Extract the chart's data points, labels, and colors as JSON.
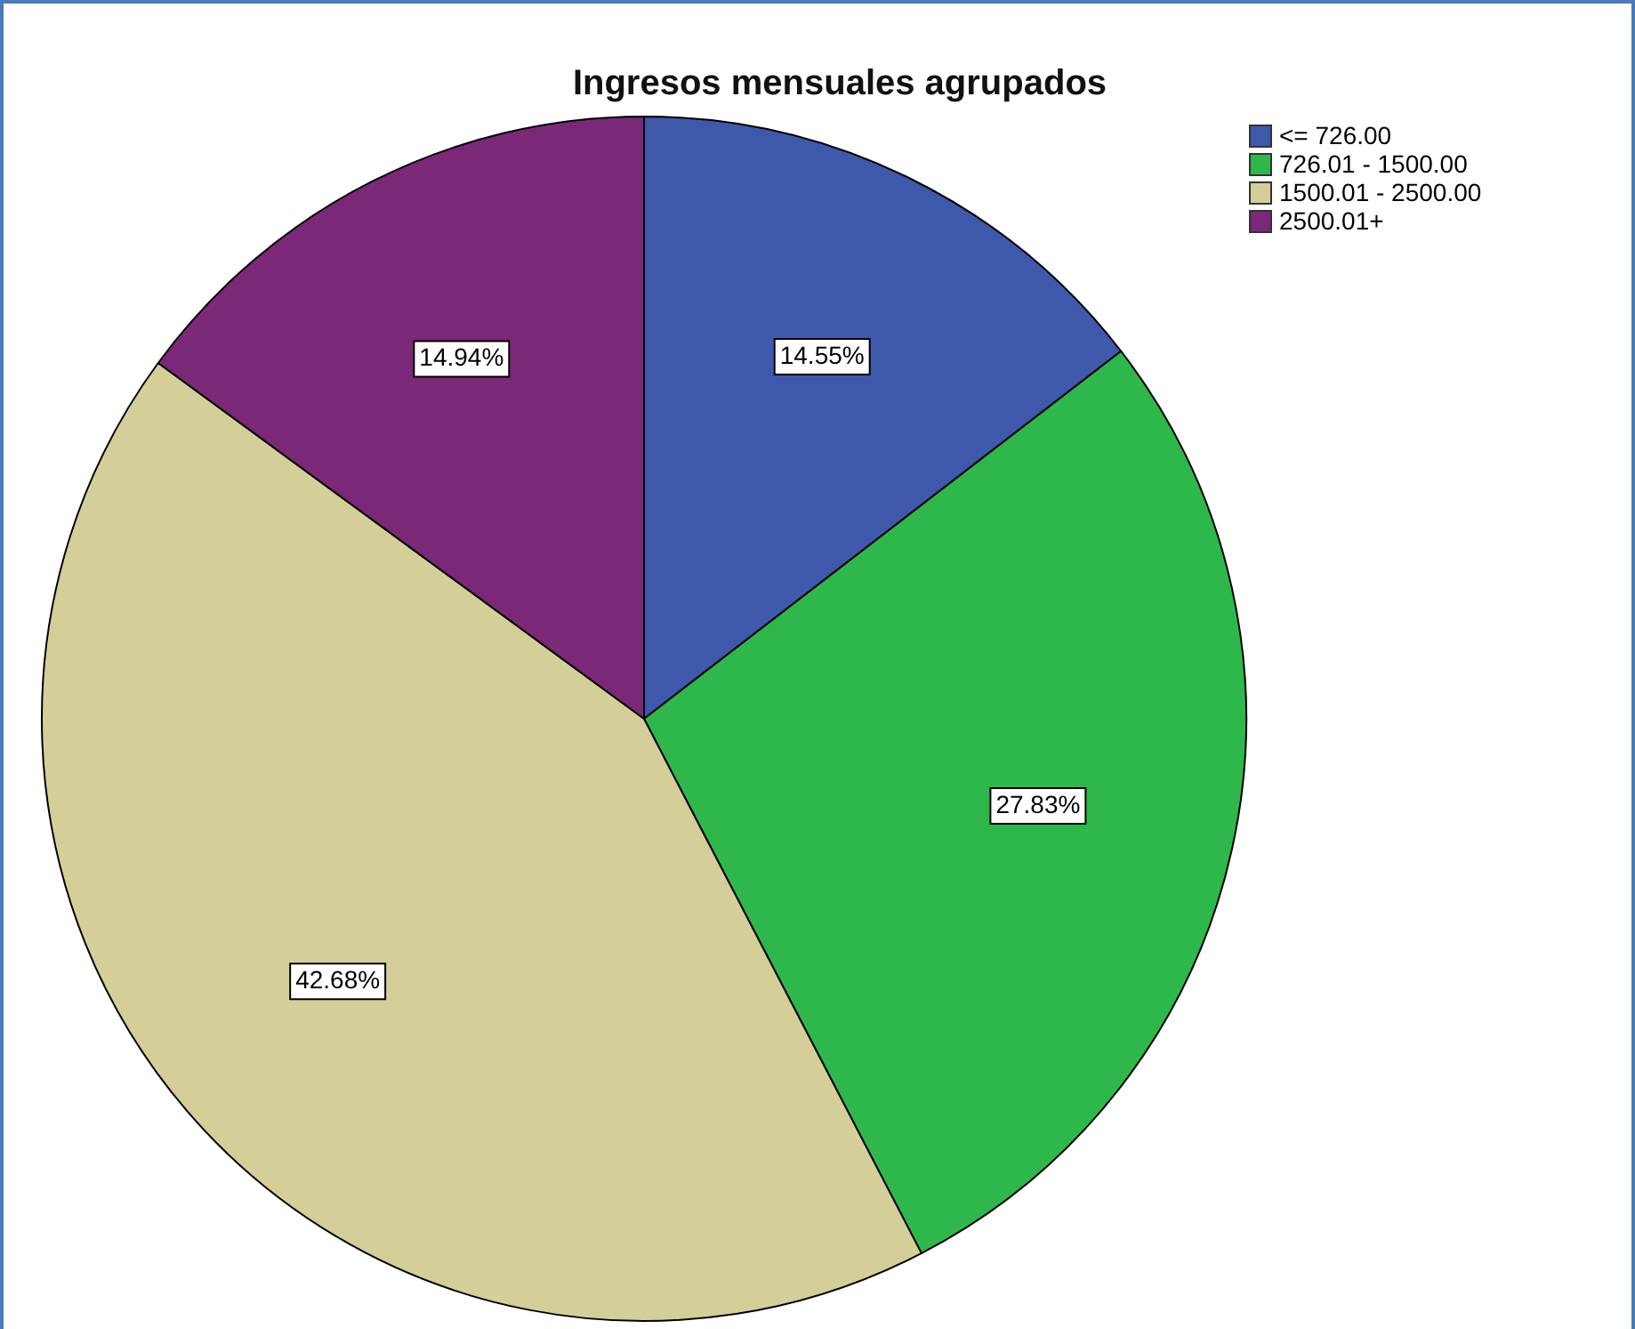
{
  "chart_data": {
    "type": "pie",
    "title": "Ingresos mensuales agrupados",
    "categories": [
      "<= 726.00",
      "726.01 - 1500.00",
      "1500.01 - 2500.00",
      "2500.01+"
    ],
    "values": [
      14.55,
      27.83,
      42.68,
      14.94
    ],
    "value_labels": [
      "14.55%",
      "27.83%",
      "42.68%",
      "14.94%"
    ],
    "colors": [
      "#3e58ac",
      "#2eb84b",
      "#d4cf98",
      "#7b2878"
    ],
    "legend": "top right"
  }
}
